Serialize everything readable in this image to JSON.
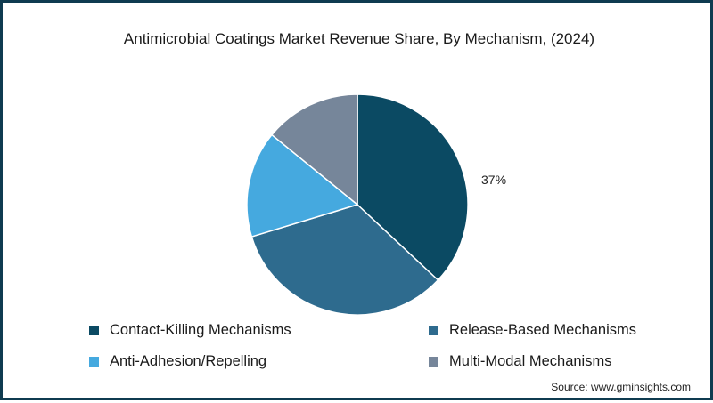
{
  "title": "Antimicrobial Coatings Market Revenue Share, By Mechanism, (2024)",
  "source": "Source: www.gminsights.com",
  "colors": {
    "border": "#0f3b50",
    "contact_killing": "#0b4a63",
    "release_based": "#2e6b8e",
    "anti_adhesion": "#45a9df",
    "multi_modal": "#76869a"
  },
  "slice_label": "37%",
  "legend": [
    {
      "label": "Contact-Killing Mechanisms",
      "color": "#0b4a63"
    },
    {
      "label": "Release-Based Mechanisms",
      "color": "#2e6b8e"
    },
    {
      "label": "Anti-Adhesion/Repelling",
      "color": "#45a9df"
    },
    {
      "label": "Multi-Modal Mechanisms",
      "color": "#76869a"
    }
  ],
  "chart_data": {
    "type": "pie",
    "title": "Antimicrobial Coatings Market Revenue Share, By Mechanism, (2024)",
    "categories": [
      "Contact-Killing Mechanisms",
      "Release-Based Mechanisms",
      "Anti-Adhesion/Repelling",
      "Multi-Modal Mechanisms"
    ],
    "values": [
      37,
      33.3,
      15.6,
      14.1
    ],
    "labeled_values": {
      "Contact-Killing Mechanisms": "37%"
    },
    "start_angle": "12 o'clock, clockwise",
    "legend_position": "bottom",
    "source": "Source: www.gminsights.com"
  }
}
